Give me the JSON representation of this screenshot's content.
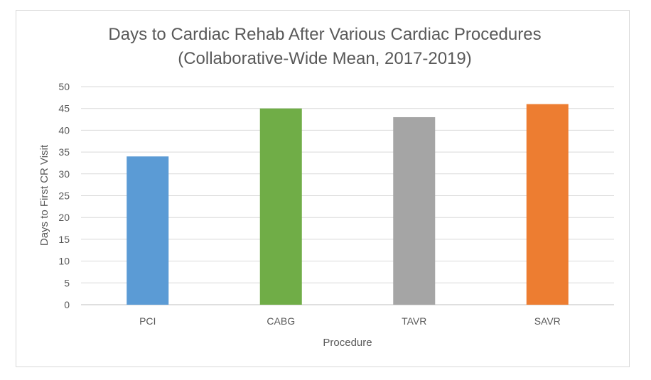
{
  "chart_data": {
    "type": "bar",
    "title": [
      "Days to Cardiac Rehab After Various Cardiac Procedures",
      "(Collaborative-Wide Mean, 2017-2019)"
    ],
    "xlabel": "Procedure",
    "ylabel": "Days to First CR Visit",
    "categories": [
      "PCI",
      "CABG",
      "TAVR",
      "SAVR"
    ],
    "values": [
      34,
      45,
      43,
      46
    ],
    "colors": [
      "#5b9bd5",
      "#70ad47",
      "#a5a5a5",
      "#ed7d31"
    ],
    "ylim": [
      0,
      50
    ],
    "yticks": [
      0,
      5,
      10,
      15,
      20,
      25,
      30,
      35,
      40,
      45,
      50
    ],
    "grid": true,
    "legend": "none"
  }
}
